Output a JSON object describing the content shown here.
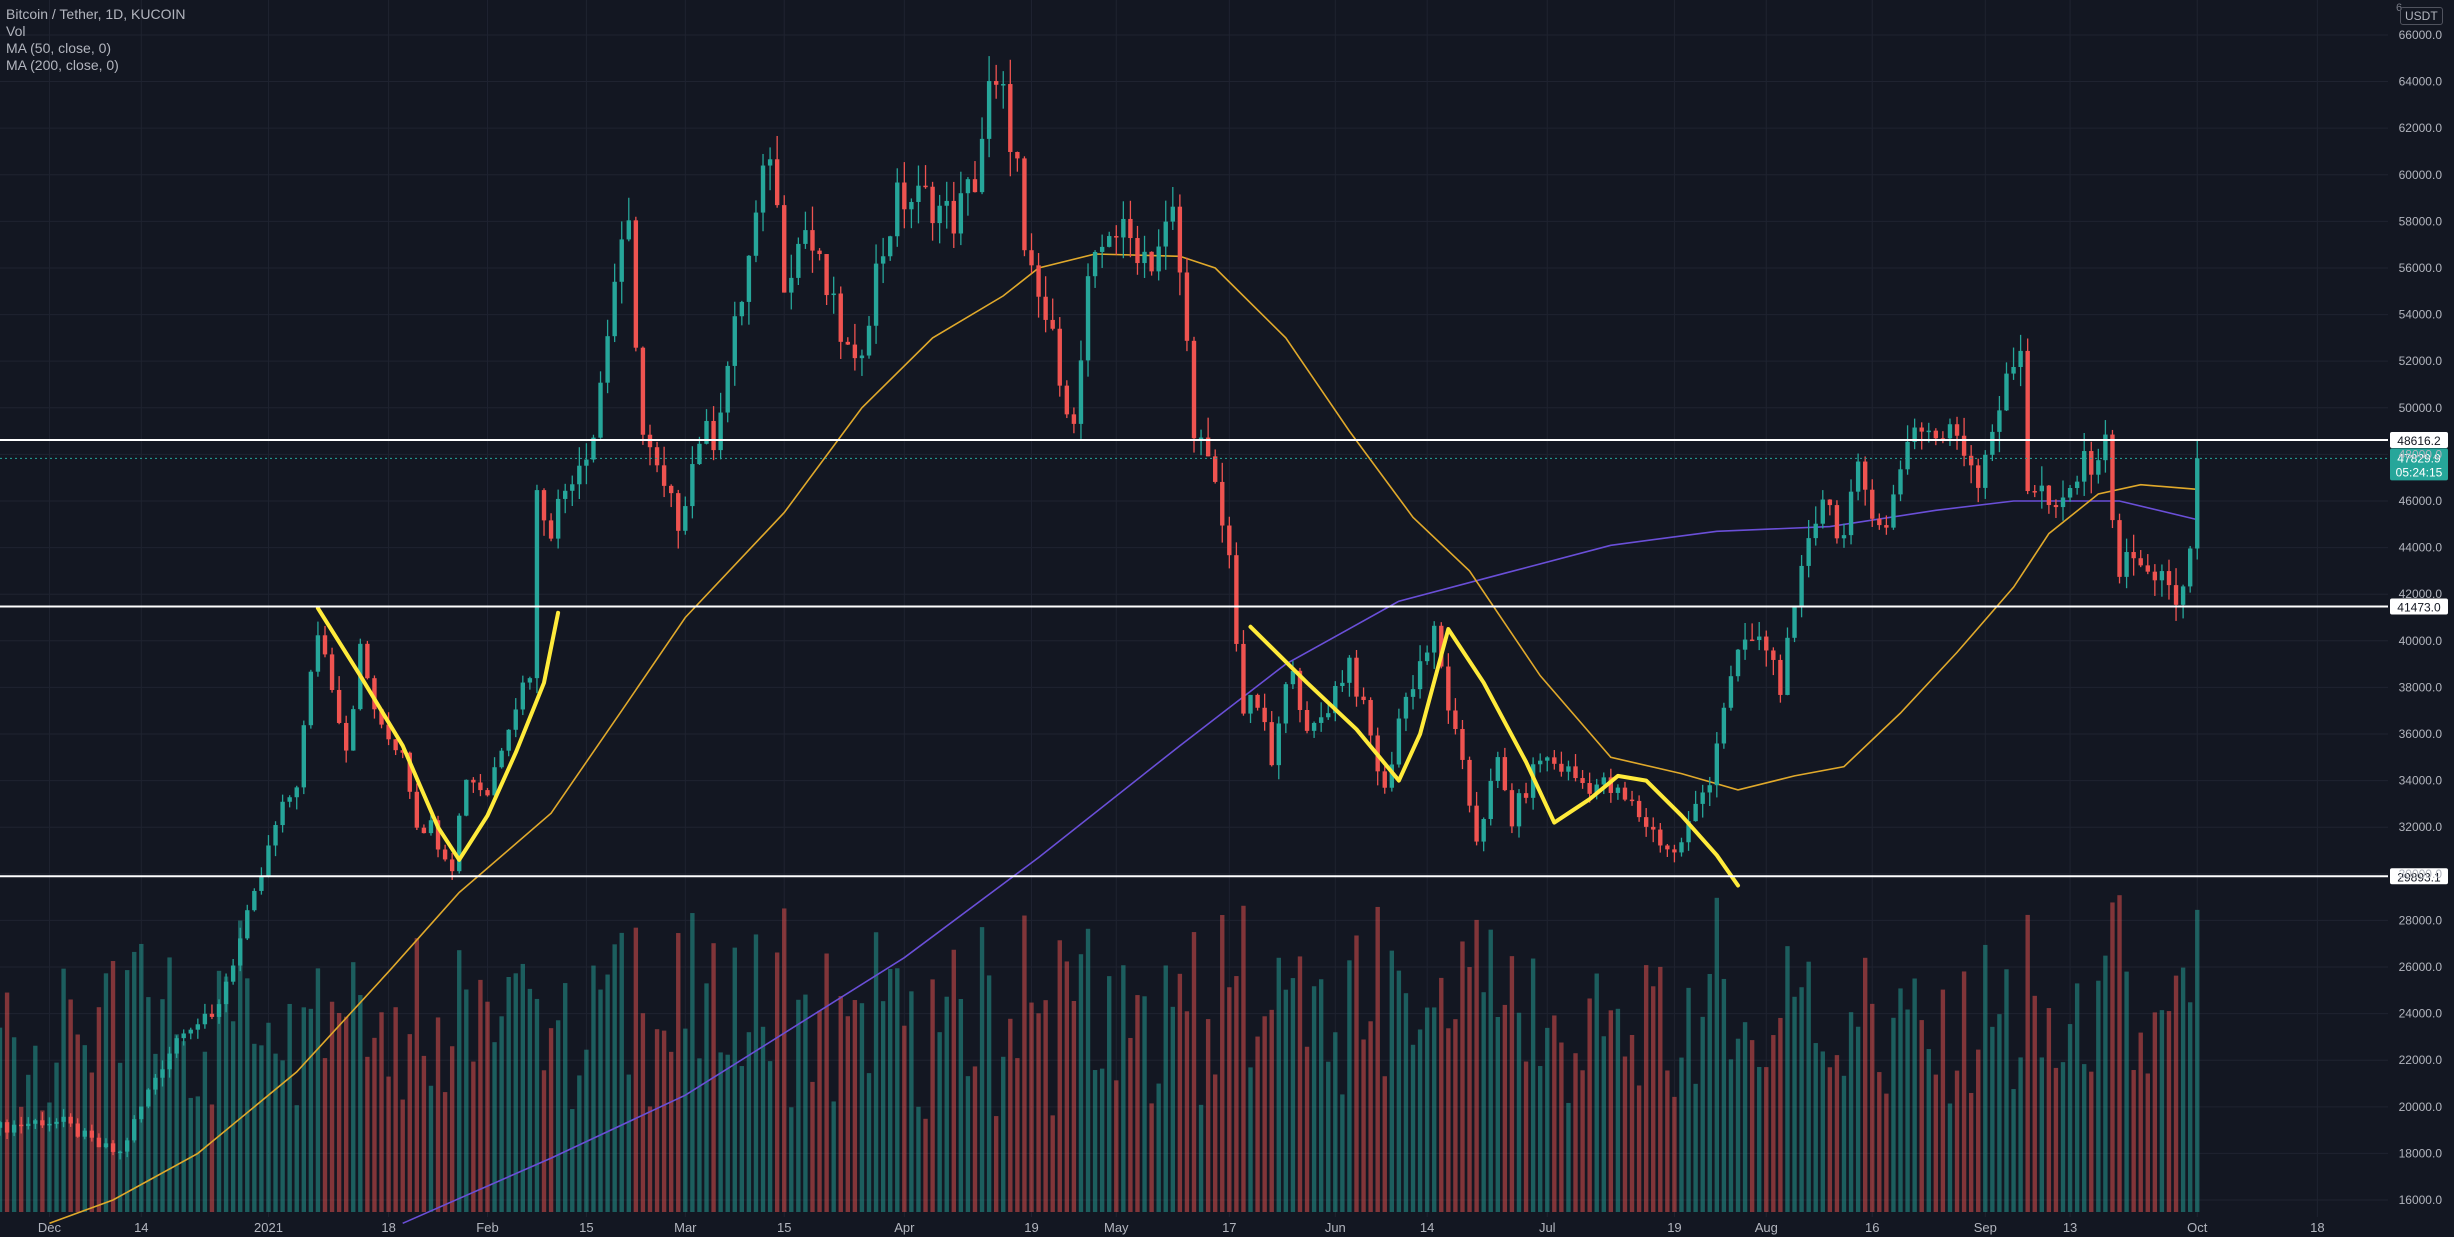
{
  "header": {
    "symbol_line": "Bitcoin / Tether, 1D, KUCOIN",
    "vol_label": "Vol",
    "ma50_label": "MA (50, close, 0)",
    "ma200_label": "MA (200, close, 0)",
    "currency": "USDT",
    "corner_mark": "6"
  },
  "chart_data": {
    "type": "candlestick",
    "title": "Bitcoin / Tether, 1D, KUCOIN",
    "y_axis": {
      "ticks": [
        16000,
        18000,
        20000,
        22000,
        24000,
        26000,
        28000,
        30000,
        32000,
        34000,
        36000,
        38000,
        40000,
        42000,
        44000,
        46000,
        48000,
        50000,
        52000,
        54000,
        56000,
        58000,
        60000,
        62000,
        64000,
        66000
      ],
      "tick_labels": [
        "16000.0",
        "18000.0",
        "20000.0",
        "22000.0",
        "24000.0",
        "26000.0",
        "28000.0",
        "30000.0",
        "32000.0",
        "34000.0",
        "36000.0",
        "38000.0",
        "40000.0",
        "42000.0",
        "44000.0",
        "46000.0",
        "48000.0",
        "50000.0",
        "52000.0",
        "54000.0",
        "56000.0",
        "58000.0",
        "60000.0",
        "62000.0",
        "64000.0",
        "66000.0"
      ],
      "range": [
        14800,
        67500
      ]
    },
    "x_axis": {
      "range": [
        "2020-11-24",
        "2021-10-28"
      ],
      "ticks": [
        {
          "date": "2020-12-01",
          "label": "Dec"
        },
        {
          "date": "2020-12-14",
          "label": "14"
        },
        {
          "date": "2021-01-01",
          "label": "2021"
        },
        {
          "date": "2021-01-18",
          "label": "18"
        },
        {
          "date": "2021-02-01",
          "label": "Feb"
        },
        {
          "date": "2021-02-15",
          "label": "15"
        },
        {
          "date": "2021-03-01",
          "label": "Mar"
        },
        {
          "date": "2021-03-15",
          "label": "15"
        },
        {
          "date": "2021-04-01",
          "label": "Apr"
        },
        {
          "date": "2021-04-19",
          "label": "19"
        },
        {
          "date": "2021-05-01",
          "label": "May"
        },
        {
          "date": "2021-05-17",
          "label": "17"
        },
        {
          "date": "2021-06-01",
          "label": "Jun"
        },
        {
          "date": "2021-06-14",
          "label": "14"
        },
        {
          "date": "2021-07-01",
          "label": "Jul"
        },
        {
          "date": "2021-07-19",
          "label": "19"
        },
        {
          "date": "2021-08-01",
          "label": "Aug"
        },
        {
          "date": "2021-08-16",
          "label": "16"
        },
        {
          "date": "2021-09-01",
          "label": "Sep"
        },
        {
          "date": "2021-09-13",
          "label": "13"
        },
        {
          "date": "2021-10-01",
          "label": "Oct"
        },
        {
          "date": "2021-10-18",
          "label": "18"
        }
      ]
    },
    "horizontal_levels": [
      {
        "value": 48616.2,
        "label": "48616.2"
      },
      {
        "value": 41473.0,
        "label": "41473.0"
      },
      {
        "value": 29893.1,
        "label": "29893.1"
      }
    ],
    "current_price": {
      "value": 47829.9,
      "label": "47829.9",
      "countdown": "05:24:15"
    },
    "price_path": [
      {
        "date": "2020-11-24",
        "close": 19100
      },
      {
        "date": "2020-11-30",
        "close": 19400
      },
      {
        "date": "2020-12-03",
        "close": 19300
      },
      {
        "date": "2020-12-08",
        "close": 18300
      },
      {
        "date": "2020-12-11",
        "close": 18000
      },
      {
        "date": "2020-12-16",
        "close": 21300
      },
      {
        "date": "2020-12-20",
        "close": 23500
      },
      {
        "date": "2020-12-24",
        "close": 23700
      },
      {
        "date": "2020-12-27",
        "close": 26300
      },
      {
        "date": "2020-12-30",
        "close": 28900
      },
      {
        "date": "2021-01-02",
        "close": 32000
      },
      {
        "date": "2021-01-05",
        "close": 34000
      },
      {
        "date": "2021-01-08",
        "close": 40500
      },
      {
        "date": "2021-01-10",
        "close": 38300
      },
      {
        "date": "2021-01-12",
        "close": 35500
      },
      {
        "date": "2021-01-14",
        "close": 39500
      },
      {
        "date": "2021-01-17",
        "close": 36000
      },
      {
        "date": "2021-01-20",
        "close": 35400
      },
      {
        "date": "2021-01-22",
        "close": 32300
      },
      {
        "date": "2021-01-24",
        "close": 32000
      },
      {
        "date": "2021-01-27",
        "close": 30500
      },
      {
        "date": "2021-01-29",
        "close": 34300
      },
      {
        "date": "2021-02-01",
        "close": 33500
      },
      {
        "date": "2021-02-04",
        "close": 36700
      },
      {
        "date": "2021-02-07",
        "close": 38800
      },
      {
        "date": "2021-02-08",
        "close": 46200
      },
      {
        "date": "2021-02-10",
        "close": 45000
      },
      {
        "date": "2021-02-13",
        "close": 47300
      },
      {
        "date": "2021-02-16",
        "close": 48900
      },
      {
        "date": "2021-02-19",
        "close": 55500
      },
      {
        "date": "2021-02-21",
        "close": 57500
      },
      {
        "date": "2021-02-23",
        "close": 48800
      },
      {
        "date": "2021-02-26",
        "close": 46300
      },
      {
        "date": "2021-02-28",
        "close": 45200
      },
      {
        "date": "2021-03-03",
        "close": 48800
      },
      {
        "date": "2021-03-05",
        "close": 48800
      },
      {
        "date": "2021-03-09",
        "close": 54800
      },
      {
        "date": "2021-03-13",
        "close": 61200
      },
      {
        "date": "2021-03-15",
        "close": 55700
      },
      {
        "date": "2021-03-18",
        "close": 57700
      },
      {
        "date": "2021-03-22",
        "close": 54100
      },
      {
        "date": "2021-03-25",
        "close": 51400
      },
      {
        "date": "2021-03-28",
        "close": 55800
      },
      {
        "date": "2021-03-31",
        "close": 58900
      },
      {
        "date": "2021-04-04",
        "close": 59000
      },
      {
        "date": "2021-04-08",
        "close": 58100
      },
      {
        "date": "2021-04-11",
        "close": 59800
      },
      {
        "date": "2021-04-13",
        "close": 63500
      },
      {
        "date": "2021-04-15",
        "close": 63200
      },
      {
        "date": "2021-04-17",
        "close": 60300
      },
      {
        "date": "2021-04-18",
        "close": 56200
      },
      {
        "date": "2021-04-21",
        "close": 53800
      },
      {
        "date": "2021-04-23",
        "close": 51700
      },
      {
        "date": "2021-04-25",
        "close": 49000
      },
      {
        "date": "2021-04-27",
        "close": 55000
      },
      {
        "date": "2021-04-30",
        "close": 57800
      },
      {
        "date": "2021-05-03",
        "close": 57200
      },
      {
        "date": "2021-05-06",
        "close": 56400
      },
      {
        "date": "2021-05-09",
        "close": 58200
      },
      {
        "date": "2021-05-10",
        "close": 55800
      },
      {
        "date": "2021-05-12",
        "close": 49400
      },
      {
        "date": "2021-05-15",
        "close": 46400
      },
      {
        "date": "2021-05-17",
        "close": 43500
      },
      {
        "date": "2021-05-19",
        "close": 37000
      },
      {
        "date": "2021-05-21",
        "close": 37300
      },
      {
        "date": "2021-05-23",
        "close": 34700
      },
      {
        "date": "2021-05-26",
        "close": 39300
      },
      {
        "date": "2021-05-28",
        "close": 35700
      },
      {
        "date": "2021-05-31",
        "close": 37300
      },
      {
        "date": "2021-06-03",
        "close": 39200
      },
      {
        "date": "2021-06-06",
        "close": 35800
      },
      {
        "date": "2021-06-08",
        "close": 33400
      },
      {
        "date": "2021-06-10",
        "close": 36700
      },
      {
        "date": "2021-06-13",
        "close": 39100
      },
      {
        "date": "2021-06-15",
        "close": 40200
      },
      {
        "date": "2021-06-18",
        "close": 35800
      },
      {
        "date": "2021-06-21",
        "close": 31600
      },
      {
        "date": "2021-06-24",
        "close": 34700
      },
      {
        "date": "2021-06-26",
        "close": 32300
      },
      {
        "date": "2021-06-30",
        "close": 35000
      },
      {
        "date": "2021-07-03",
        "close": 34600
      },
      {
        "date": "2021-07-06",
        "close": 33900
      },
      {
        "date": "2021-07-09",
        "close": 33800
      },
      {
        "date": "2021-07-13",
        "close": 32900
      },
      {
        "date": "2021-07-16",
        "close": 31800
      },
      {
        "date": "2021-07-19",
        "close": 30800
      },
      {
        "date": "2021-07-21",
        "close": 32100
      },
      {
        "date": "2021-07-24",
        "close": 34200
      },
      {
        "date": "2021-07-26",
        "close": 37300
      },
      {
        "date": "2021-07-29",
        "close": 40000
      },
      {
        "date": "2021-08-01",
        "close": 39800
      },
      {
        "date": "2021-08-03",
        "close": 38200
      },
      {
        "date": "2021-08-05",
        "close": 40900
      },
      {
        "date": "2021-08-07",
        "close": 44600
      },
      {
        "date": "2021-08-09",
        "close": 46300
      },
      {
        "date": "2021-08-12",
        "close": 44400
      },
      {
        "date": "2021-08-14",
        "close": 47100
      },
      {
        "date": "2021-08-16",
        "close": 45900
      },
      {
        "date": "2021-08-18",
        "close": 44700
      },
      {
        "date": "2021-08-21",
        "close": 48900
      },
      {
        "date": "2021-08-23",
        "close": 49300
      },
      {
        "date": "2021-08-25",
        "close": 48700
      },
      {
        "date": "2021-08-28",
        "close": 48900
      },
      {
        "date": "2021-08-31",
        "close": 47100
      },
      {
        "date": "2021-09-02",
        "close": 49300
      },
      {
        "date": "2021-09-05",
        "close": 51700
      },
      {
        "date": "2021-09-06",
        "close": 52700
      },
      {
        "date": "2021-09-07",
        "close": 46800
      },
      {
        "date": "2021-09-09",
        "close": 46400
      },
      {
        "date": "2021-09-11",
        "close": 45200
      },
      {
        "date": "2021-09-14",
        "close": 47100
      },
      {
        "date": "2021-09-16",
        "close": 47800
      },
      {
        "date": "2021-09-18",
        "close": 48300
      },
      {
        "date": "2021-09-20",
        "close": 43000
      },
      {
        "date": "2021-09-22",
        "close": 43600
      },
      {
        "date": "2021-09-24",
        "close": 42700
      },
      {
        "date": "2021-09-26",
        "close": 43200
      },
      {
        "date": "2021-09-28",
        "close": 41000
      },
      {
        "date": "2021-09-30",
        "close": 43800
      },
      {
        "date": "2021-10-01",
        "close": 47830
      }
    ],
    "ma50_path": [
      {
        "date": "2020-12-01",
        "value": 15000
      },
      {
        "date": "2020-12-10",
        "value": 16000
      },
      {
        "date": "2020-12-22",
        "value": 18000
      },
      {
        "date": "2021-01-05",
        "value": 21500
      },
      {
        "date": "2021-01-18",
        "value": 25800
      },
      {
        "date": "2021-01-28",
        "value": 29200
      },
      {
        "date": "2021-02-10",
        "value": 32600
      },
      {
        "date": "2021-02-20",
        "value": 37000
      },
      {
        "date": "2021-03-01",
        "value": 41000
      },
      {
        "date": "2021-03-15",
        "value": 45500
      },
      {
        "date": "2021-03-26",
        "value": 50000
      },
      {
        "date": "2021-04-05",
        "value": 53000
      },
      {
        "date": "2021-04-15",
        "value": 54800
      },
      {
        "date": "2021-04-20",
        "value": 56000
      },
      {
        "date": "2021-04-28",
        "value": 56600
      },
      {
        "date": "2021-05-10",
        "value": 56500
      },
      {
        "date": "2021-05-15",
        "value": 56000
      },
      {
        "date": "2021-05-25",
        "value": 53000
      },
      {
        "date": "2021-06-03",
        "value": 49000
      },
      {
        "date": "2021-06-12",
        "value": 45300
      },
      {
        "date": "2021-06-20",
        "value": 43000
      },
      {
        "date": "2021-06-30",
        "value": 38500
      },
      {
        "date": "2021-07-10",
        "value": 35000
      },
      {
        "date": "2021-07-20",
        "value": 34300
      },
      {
        "date": "2021-07-28",
        "value": 33600
      },
      {
        "date": "2021-08-05",
        "value": 34200
      },
      {
        "date": "2021-08-12",
        "value": 34600
      },
      {
        "date": "2021-08-20",
        "value": 36900
      },
      {
        "date": "2021-08-28",
        "value": 39500
      },
      {
        "date": "2021-09-05",
        "value": 42300
      },
      {
        "date": "2021-09-10",
        "value": 44600
      },
      {
        "date": "2021-09-17",
        "value": 46300
      },
      {
        "date": "2021-09-23",
        "value": 46700
      },
      {
        "date": "2021-10-01",
        "value": 46500
      }
    ],
    "ma200_path": [
      {
        "date": "2021-01-20",
        "value": 15000
      },
      {
        "date": "2021-02-10",
        "value": 17800
      },
      {
        "date": "2021-03-01",
        "value": 20500
      },
      {
        "date": "2021-04-01",
        "value": 26400
      },
      {
        "date": "2021-04-20",
        "value": 30700
      },
      {
        "date": "2021-05-10",
        "value": 35500
      },
      {
        "date": "2021-05-25",
        "value": 39000
      },
      {
        "date": "2021-06-10",
        "value": 41700
      },
      {
        "date": "2021-06-25",
        "value": 42900
      },
      {
        "date": "2021-07-10",
        "value": 44100
      },
      {
        "date": "2021-07-25",
        "value": 44700
      },
      {
        "date": "2021-08-10",
        "value": 44900
      },
      {
        "date": "2021-08-25",
        "value": 45600
      },
      {
        "date": "2021-09-05",
        "value": 46000
      },
      {
        "date": "2021-09-20",
        "value": 46000
      },
      {
        "date": "2021-10-01",
        "value": 45200
      }
    ],
    "annotation_paths": [
      [
        {
          "date": "2021-01-08",
          "value": 41400
        },
        {
          "date": "2021-01-14",
          "value": 38500
        },
        {
          "date": "2021-01-20",
          "value": 35500
        },
        {
          "date": "2021-01-25",
          "value": 32000
        },
        {
          "date": "2021-01-28",
          "value": 30600
        },
        {
          "date": "2021-02-01",
          "value": 32500
        },
        {
          "date": "2021-02-05",
          "value": 35200
        },
        {
          "date": "2021-02-09",
          "value": 38200
        },
        {
          "date": "2021-02-11",
          "value": 41200
        }
      ],
      [
        {
          "date": "2021-05-20",
          "value": 40600
        },
        {
          "date": "2021-05-28",
          "value": 38200
        },
        {
          "date": "2021-06-04",
          "value": 36200
        },
        {
          "date": "2021-06-10",
          "value": 34000
        },
        {
          "date": "2021-06-13",
          "value": 36000
        },
        {
          "date": "2021-06-17",
          "value": 40500
        },
        {
          "date": "2021-06-22",
          "value": 38200
        },
        {
          "date": "2021-06-28",
          "value": 34800
        },
        {
          "date": "2021-07-02",
          "value": 32200
        },
        {
          "date": "2021-07-07",
          "value": 33200
        },
        {
          "date": "2021-07-11",
          "value": 34200
        },
        {
          "date": "2021-07-15",
          "value": 34000
        },
        {
          "date": "2021-07-20",
          "value": 32500
        },
        {
          "date": "2021-07-25",
          "value": 30800
        },
        {
          "date": "2021-07-28",
          "value": 29500
        }
      ]
    ],
    "colors": {
      "up": "#26a69a",
      "down": "#ef5350",
      "ma50": "#e0a92b",
      "ma200": "#6a4fd8",
      "annotation": "#ffeb3b",
      "level_line": "#ffffff",
      "background": "#131722"
    },
    "volume_shown": true,
    "grid": true
  }
}
